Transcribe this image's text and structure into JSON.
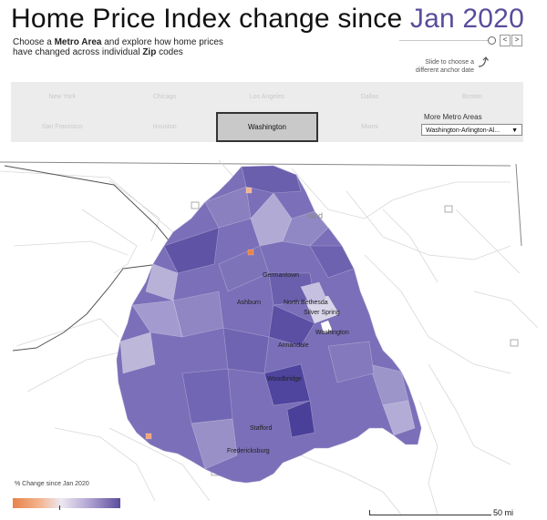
{
  "header": {
    "title_main": "Home Price Index change since ",
    "title_date": "Jan 2020",
    "subtitle_1": "Choose a ",
    "subtitle_bold_1": "Metro Area",
    "subtitle_2": " and explore how home prices",
    "subtitle_3": "have changed across individual ",
    "subtitle_bold_2": "Zip",
    "subtitle_4": " codes"
  },
  "date_slider": {
    "position": 1.0,
    "prev_label": "<",
    "next_label": ">",
    "hint_line1": "Slide to choose a",
    "hint_line2": "different anchor date"
  },
  "metro_buttons": [
    {
      "label": "New York",
      "selected": false
    },
    {
      "label": "Chicago",
      "selected": false
    },
    {
      "label": "Los Angeles",
      "selected": false
    },
    {
      "label": "Dallas",
      "selected": false
    },
    {
      "label": "Boston",
      "selected": false
    },
    {
      "label": "San Francisco",
      "selected": false
    },
    {
      "label": "Houston",
      "selected": false
    },
    {
      "label": "Washington",
      "selected": true
    },
    {
      "label": "Miami",
      "selected": false
    }
  ],
  "more_metros": {
    "label": "More Metro Areas",
    "selected": "Washington-Arlington-Al...",
    "arrow": "▼"
  },
  "map": {
    "background_labels": [
      "land"
    ],
    "city_labels": [
      "Germantown",
      "Ashburn",
      "North Bethesda",
      "Silver Spring",
      "Washington",
      "Annandale",
      "Woodbridge",
      "Stafford",
      "Fredericksburg"
    ]
  },
  "legend": {
    "title": "% Change since Jan 2020",
    "colors": {
      "negative": "#e8834a",
      "neutral": "#ece8f1",
      "positive": "#5b4c9b"
    }
  },
  "scale": {
    "label": "50 mi"
  }
}
